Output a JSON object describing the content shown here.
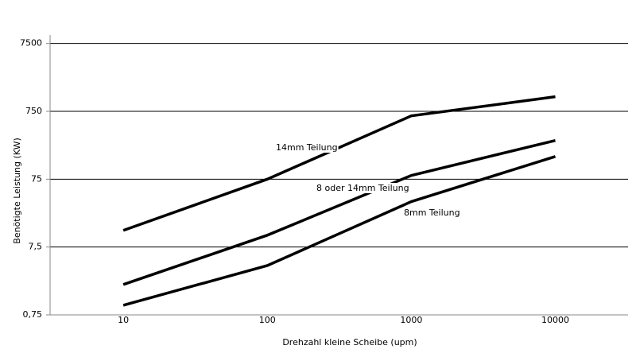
{
  "chart_data": {
    "type": "line",
    "y_label": "Benötigte Leistung (KW)",
    "x_label": "Drehzahl kleine Scheibe (upm)",
    "x": [
      10,
      100,
      1000,
      10000
    ],
    "series": [
      {
        "name": "14mm Teilung",
        "color": "#000000",
        "values": [
          13.2,
          75,
          643,
          1230
        ]
      },
      {
        "name": "8 oder 14mm Teilung",
        "color": "#000000",
        "values": [
          2.1,
          11.2,
          85,
          279
        ]
      },
      {
        "name": "8mm Teilung",
        "color": "#000000",
        "values": [
          1.04,
          4.0,
          35,
          162
        ]
      }
    ],
    "xlim": [
      3.1,
      32000
    ],
    "ylim": [
      0.75,
      10000
    ],
    "xticks": [
      10,
      100,
      1000,
      10000
    ],
    "yticks": [
      {
        "value": 0.75,
        "label": "0,75"
      },
      {
        "value": 7.5,
        "label": "7,5"
      },
      75,
      750,
      7500
    ],
    "log_x": true,
    "log_y": true,
    "grid": true
  }
}
